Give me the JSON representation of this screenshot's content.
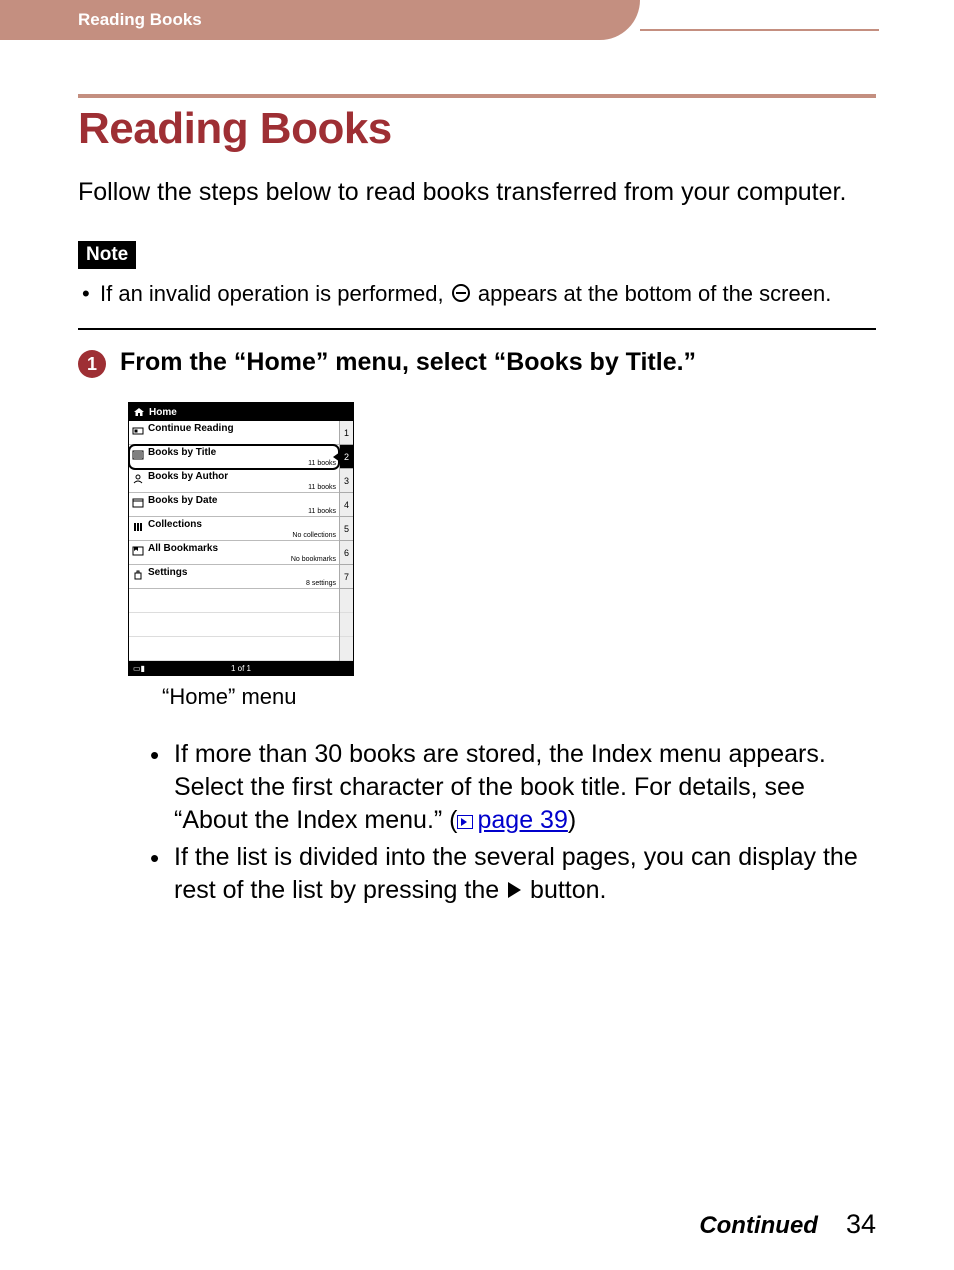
{
  "colors": {
    "accent": "#c48f80",
    "heading": "#9e2f34",
    "link": "#0000cc",
    "text": "#000000",
    "background": "#ffffff"
  },
  "header": {
    "breadcrumb": "Reading Books"
  },
  "title": "Reading Books",
  "intro": "Follow the steps below to read books transferred from your computer.",
  "note": {
    "badge": "Note",
    "text_before": "If an invalid operation is performed, ",
    "text_after": " appears at the bottom of the screen."
  },
  "step": {
    "number": "1",
    "title": "From the “Home” menu, select “Books by Title.”"
  },
  "device": {
    "header": "Home",
    "rows": [
      {
        "label": "Continue Reading",
        "count": "",
        "num": "1",
        "active": false
      },
      {
        "label": "Books by Title",
        "count": "11 books",
        "num": "2",
        "active": true
      },
      {
        "label": "Books by Author",
        "count": "11 books",
        "num": "3",
        "active": false
      },
      {
        "label": "Books by Date",
        "count": "11 books",
        "num": "4",
        "active": false
      },
      {
        "label": "Collections",
        "count": "No collections",
        "num": "5",
        "active": false
      },
      {
        "label": "All Bookmarks",
        "count": "No bookmarks",
        "num": "6",
        "active": false
      },
      {
        "label": "Settings",
        "count": "8 settings",
        "num": "7",
        "active": false
      }
    ],
    "footer": "1 of 1"
  },
  "caption": "“Home” menu",
  "bullets": {
    "b1a": "If more than 30 books are stored, the Index menu appears. Select the first character of the book title. For details, see “About the Index menu.” (",
    "b1link": "page 39",
    "b1c": ")",
    "b2a": "If the list is divided into the several pages, you can display the rest of the list by pressing the ",
    "b2b": " button."
  },
  "footer": {
    "continued": "Continued",
    "page": "34"
  }
}
